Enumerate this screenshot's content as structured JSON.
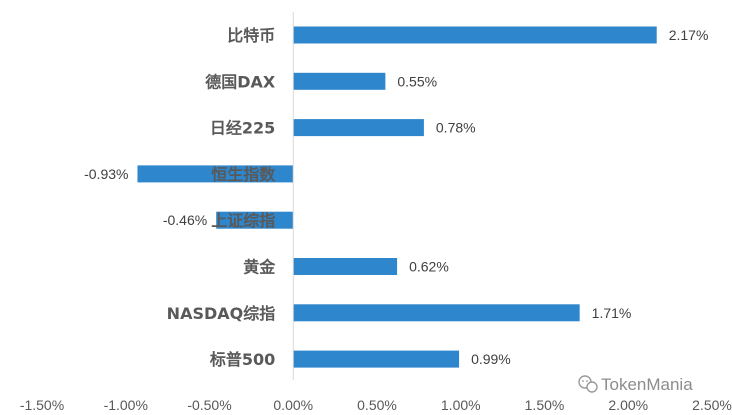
{
  "chart_data": {
    "type": "bar",
    "orientation": "horizontal",
    "categories": [
      "比特币",
      "德国DAX",
      "日经225",
      "恒生指数",
      "上证综指",
      "黄金",
      "NASDAQ综指",
      "标普500"
    ],
    "values": [
      2.17,
      0.55,
      0.78,
      -0.93,
      -0.46,
      0.62,
      1.71,
      0.99
    ],
    "value_labels": [
      "2.17%",
      "0.55%",
      "0.78%",
      "-0.93%",
      "-0.46%",
      "0.62%",
      "1.71%",
      "0.99%"
    ],
    "xlim": [
      -1.5,
      2.5
    ],
    "x_ticks": [
      -1.5,
      -1.0,
      -0.5,
      0.0,
      0.5,
      1.0,
      1.5,
      2.0,
      2.5
    ],
    "x_tick_labels": [
      "-1.50%",
      "-1.00%",
      "-0.50%",
      "0.00%",
      "0.50%",
      "1.00%",
      "1.50%",
      "2.00%",
      "2.50%"
    ],
    "title": "",
    "xlabel": "",
    "ylabel": "",
    "grid": false,
    "legend": "none",
    "bar_color": "#2E86CC"
  },
  "watermark": {
    "icon": "wechat-icon",
    "text": "TokenMania"
  }
}
